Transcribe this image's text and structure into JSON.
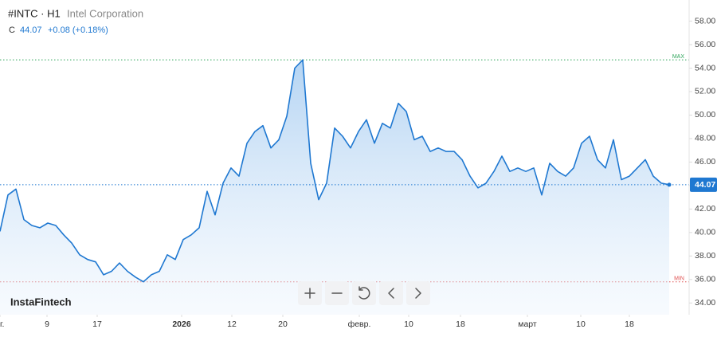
{
  "chart_data": {
    "type": "area",
    "symbol": "#INTC · H1",
    "name": "Intel Corporation",
    "close_label": "C",
    "close": 44.07,
    "change": "+0.08 (+0.18%)",
    "brand": "InstaFintech",
    "color": "#1f78d1",
    "values": [
      40.1,
      43.2,
      43.7,
      41.1,
      40.6,
      40.4,
      40.8,
      40.6,
      39.8,
      39.1,
      38.1,
      37.7,
      37.5,
      36.4,
      36.7,
      37.4,
      36.7,
      36.2,
      35.8,
      36.4,
      36.7,
      38.1,
      37.7,
      39.4,
      39.8,
      40.4,
      43.5,
      41.5,
      44.2,
      45.5,
      44.8,
      47.6,
      48.6,
      49.1,
      47.2,
      47.9,
      49.9,
      54.0,
      54.7,
      45.9,
      42.8,
      44.2,
      48.9,
      48.2,
      47.2,
      48.6,
      49.6,
      47.6,
      49.3,
      48.9,
      51.0,
      50.3,
      47.9,
      48.2,
      46.9,
      47.2,
      46.9,
      46.9,
      46.2,
      44.8,
      43.8,
      44.2,
      45.2,
      46.5,
      45.2,
      45.5,
      45.2,
      45.5,
      43.2,
      45.9,
      45.2,
      44.8,
      45.5,
      47.6,
      48.2,
      46.2,
      45.5,
      47.9,
      44.5,
      44.8,
      45.5,
      46.2,
      44.8,
      44.2,
      44.07
    ],
    "xlim": [
      0,
      86.5
    ],
    "xticks": [
      {
        "value": 0,
        "label": "г."
      },
      {
        "value": 5.9,
        "label": "9"
      },
      {
        "value": 12.2,
        "label": "17"
      },
      {
        "value": 22.8,
        "label": "2026"
      },
      {
        "value": 29.1,
        "label": "12"
      },
      {
        "value": 35.5,
        "label": "20"
      },
      {
        "value": 45.1,
        "label": "февр."
      },
      {
        "value": 51.3,
        "label": "10"
      },
      {
        "value": 57.8,
        "label": "18"
      },
      {
        "value": 66.2,
        "label": "март"
      },
      {
        "value": 72.9,
        "label": "10"
      },
      {
        "value": 79.0,
        "label": "18"
      }
    ],
    "ylim": [
      33.0,
      59.8
    ],
    "yticks": [
      {
        "value": 34,
        "label": "34.00"
      },
      {
        "value": 36,
        "label": "36.00"
      },
      {
        "value": 38,
        "label": "38.00"
      },
      {
        "value": 40,
        "label": "40.00"
      },
      {
        "value": 42,
        "label": "42.00"
      },
      {
        "value": 44,
        "label": "44.00"
      },
      {
        "value": 46,
        "label": "46.00"
      },
      {
        "value": 48,
        "label": "48.00"
      },
      {
        "value": 50,
        "label": "50.00"
      },
      {
        "value": 52,
        "label": "52.00"
      },
      {
        "value": 54,
        "label": "54.00"
      },
      {
        "value": 56,
        "label": "56.00"
      },
      {
        "value": 58,
        "label": "58.00"
      }
    ],
    "annotations": [
      {
        "label": "MAX",
        "value": 54.7,
        "color": "#2ea55a"
      },
      {
        "label": "MIN",
        "value": 35.8,
        "color": "#e05050"
      }
    ]
  }
}
